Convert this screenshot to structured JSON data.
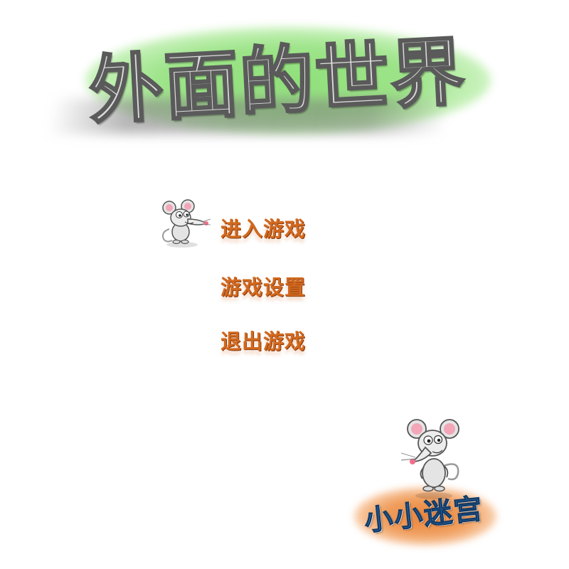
{
  "title": {
    "text": "外面的世界"
  },
  "menu": {
    "items": [
      {
        "label": "进入游戏"
      },
      {
        "label": "游戏设置"
      },
      {
        "label": "退出游戏"
      }
    ],
    "selected_index": 0,
    "selection_cursor_icon": "mouse-mascot-icon"
  },
  "logo": {
    "text": "小小迷宫",
    "mascot_icon": "mouse-mascot-icon"
  },
  "colors": {
    "background": "#ffffff",
    "title_glow": "#8fe07a",
    "title_text": "#dcdcdc",
    "menu_text": "#d2691e",
    "logo_glow": "#e8833a",
    "logo_text": "#2b6aa8"
  }
}
